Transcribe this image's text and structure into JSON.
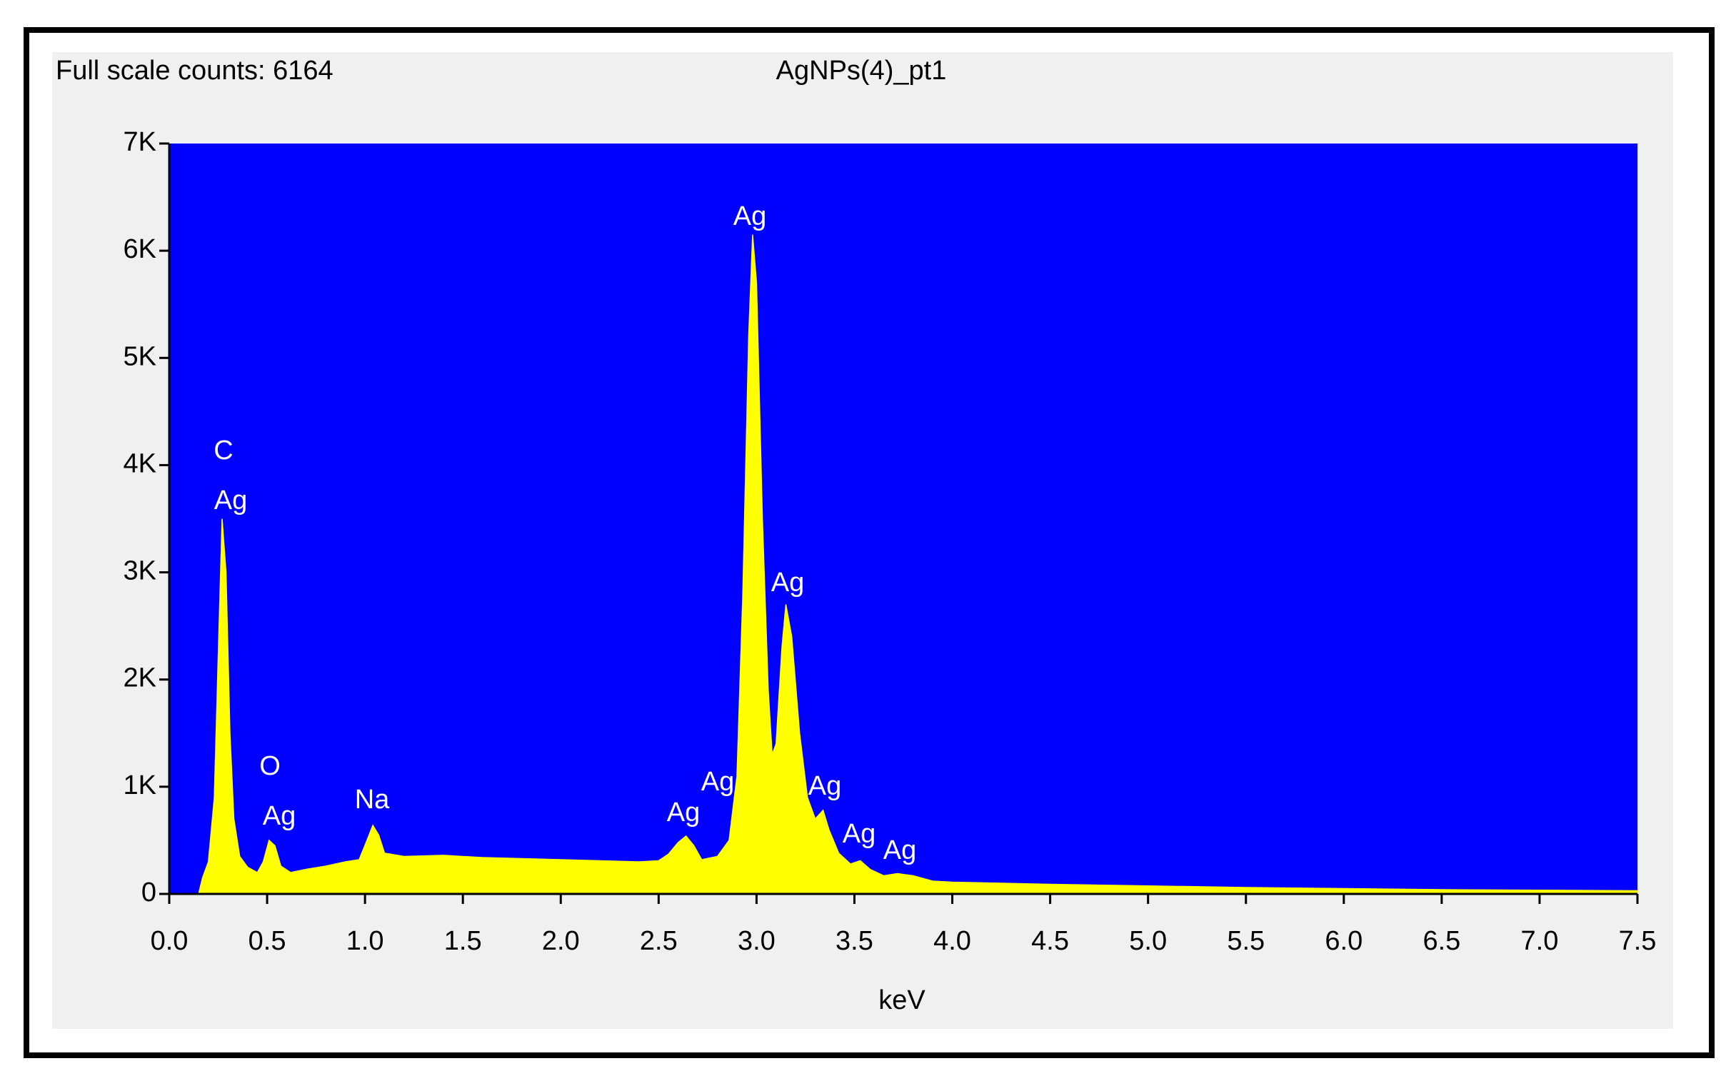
{
  "chart_data": {
    "type": "area",
    "title": "AgNPs(4)_pt1",
    "subtitle": "Full scale counts: 6164",
    "x_label": "keV",
    "background": "#0000ff",
    "color": "#ffff00",
    "x": [
      0.15,
      0.17,
      0.2,
      0.23,
      0.25,
      0.27,
      0.29,
      0.31,
      0.33,
      0.36,
      0.4,
      0.45,
      0.48,
      0.51,
      0.54,
      0.57,
      0.62,
      0.7,
      0.8,
      0.9,
      0.97,
      1.01,
      1.04,
      1.07,
      1.1,
      1.2,
      1.4,
      1.6,
      1.8,
      2.0,
      2.2,
      2.4,
      2.5,
      2.55,
      2.6,
      2.64,
      2.68,
      2.72,
      2.8,
      2.86,
      2.9,
      2.93,
      2.96,
      2.98,
      3.0,
      3.03,
      3.06,
      3.08,
      3.1,
      3.13,
      3.15,
      3.18,
      3.22,
      3.26,
      3.3,
      3.34,
      3.37,
      3.42,
      3.48,
      3.53,
      3.58,
      3.65,
      3.72,
      3.8,
      3.9,
      4.0,
      4.5,
      5.0,
      5.5,
      6.0,
      6.5,
      7.0,
      7.5
    ],
    "values": [
      0,
      150,
      300,
      900,
      2200,
      3500,
      3000,
      1500,
      700,
      350,
      250,
      200,
      300,
      500,
      450,
      260,
      200,
      230,
      260,
      300,
      320,
      500,
      640,
      550,
      380,
      350,
      360,
      340,
      330,
      320,
      310,
      300,
      310,
      370,
      480,
      540,
      450,
      320,
      350,
      500,
      1100,
      2800,
      5200,
      6150,
      5700,
      3500,
      1900,
      1300,
      1400,
      2300,
      2700,
      2400,
      1500,
      900,
      700,
      780,
      600,
      380,
      280,
      310,
      230,
      170,
      190,
      170,
      120,
      110,
      90,
      75,
      60,
      50,
      40,
      35,
      30
    ],
    "annotations": [
      "C",
      "Ag",
      "O",
      "Ag",
      "Na",
      "Ag",
      "Ag",
      "Ag",
      "Ag",
      "Ag",
      "Ag",
      "Ag"
    ],
    "xlim": [
      0,
      7.5
    ],
    "ylim": [
      0,
      7000
    ],
    "xticks": [
      {
        "value": 0,
        "label": "0.0"
      },
      0.5,
      {
        "value": 1,
        "label": "1.0"
      },
      1.5,
      {
        "value": 2,
        "label": "2.0"
      },
      2.5,
      {
        "value": 3,
        "label": "3.0"
      },
      3.5,
      {
        "value": 4,
        "label": "4.0"
      },
      4.5,
      {
        "value": 5,
        "label": "5.0"
      },
      5.5,
      {
        "value": 6,
        "label": "6.0"
      },
      6.5,
      {
        "value": 7,
        "label": "7.0"
      },
      7.5
    ],
    "yticks": [
      0,
      {
        "value": 1000,
        "label": "1K"
      },
      {
        "value": 2000,
        "label": "2K"
      },
      {
        "value": 3000,
        "label": "3K"
      },
      {
        "value": 4000,
        "label": "4K"
      },
      {
        "value": 5000,
        "label": "5K"
      },
      {
        "value": 6000,
        "label": "6K"
      },
      {
        "value": 7000,
        "label": "7K"
      }
    ]
  }
}
